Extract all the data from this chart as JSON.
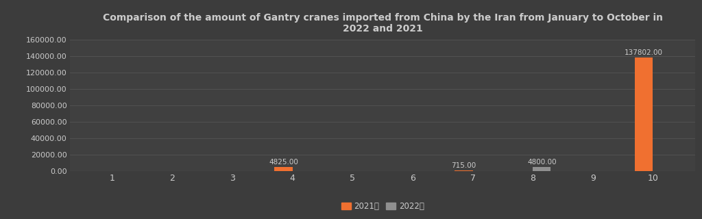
{
  "title": "Comparison of the amount of Gantry cranes imported from China by the Iran from January to October in\n2022 and 2021",
  "months": [
    1,
    2,
    3,
    4,
    5,
    6,
    7,
    8,
    9,
    10
  ],
  "values_2021": [
    0,
    0,
    0,
    4825.0,
    0,
    0,
    715.0,
    0,
    0,
    137802.0
  ],
  "values_2022": [
    0,
    0,
    0,
    0,
    0,
    0,
    0,
    4800.0,
    0,
    0
  ],
  "color_2021": "#F07030",
  "color_2022": "#909090",
  "bg_color": "#3C3C3C",
  "plot_bg_color": "#404040",
  "text_color": "#CCCCCC",
  "grid_color": "#555555",
  "ylim": [
    0,
    160000
  ],
  "yticks": [
    0,
    20000,
    40000,
    60000,
    80000,
    100000,
    120000,
    140000,
    160000
  ],
  "legend_2021": "2021年",
  "legend_2022": "2022年",
  "bar_width": 0.3,
  "ann_4_2021_label": "4825.00",
  "ann_7_2021_label": "715.00",
  "ann_8_2022_label": "4800.00",
  "ann_10_2021_label": "137802.00"
}
